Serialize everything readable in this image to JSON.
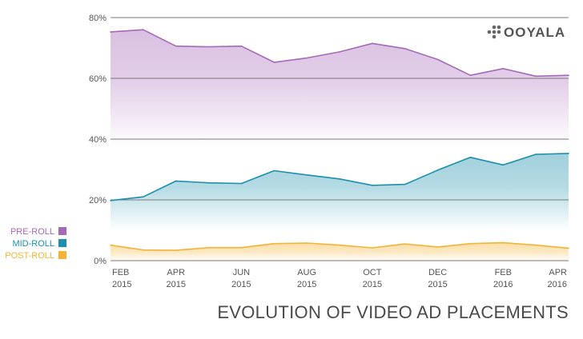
{
  "chart_data": {
    "type": "area",
    "title": "EVOLUTION OF VIDEO AD PLACEMENTS",
    "brand": "OOYALA",
    "ylim": [
      0,
      80
    ],
    "y_ticks": [
      0,
      20,
      40,
      60,
      80
    ],
    "y_tick_labels": [
      "0%",
      "20%",
      "40%",
      "60%",
      "80%"
    ],
    "x": [
      "2015-02",
      "2015-03",
      "2015-04",
      "2015-05",
      "2015-06",
      "2015-07",
      "2015-08",
      "2015-09",
      "2015-10",
      "2015-11",
      "2015-12",
      "2016-01",
      "2016-02",
      "2016-03",
      "2016-04"
    ],
    "x_tick_labels": [
      {
        "month": "FEB",
        "year": "2015"
      },
      {
        "month": "APR",
        "year": "2015"
      },
      {
        "month": "JUN",
        "year": "2015"
      },
      {
        "month": "AUG",
        "year": "2015"
      },
      {
        "month": "OCT",
        "year": "2015"
      },
      {
        "month": "DEC",
        "year": "2015"
      },
      {
        "month": "FEB",
        "year": "2016"
      },
      {
        "month": "APR",
        "year": "2016"
      }
    ],
    "series": [
      {
        "name": "PRE-ROLL",
        "color": "#a569b8",
        "values": [
          75.3,
          76.0,
          70.6,
          70.4,
          70.6,
          65.3,
          66.7,
          68.7,
          71.5,
          69.8,
          66.2,
          61.0,
          63.2,
          60.7,
          61.0
        ]
      },
      {
        "name": "MID-ROLL",
        "color": "#1b8fab",
        "values": [
          19.8,
          21.0,
          26.2,
          25.6,
          25.4,
          29.6,
          28.2,
          26.9,
          24.8,
          25.1,
          29.8,
          34.0,
          31.5,
          35.0,
          35.3
        ]
      },
      {
        "name": "POST-ROLL",
        "color": "#f5b335",
        "values": [
          5.1,
          3.5,
          3.4,
          4.3,
          4.3,
          5.6,
          5.8,
          5.1,
          4.2,
          5.5,
          4.5,
          5.6,
          5.9,
          5.1,
          4.1
        ]
      }
    ],
    "grid": true,
    "legend": "left"
  }
}
